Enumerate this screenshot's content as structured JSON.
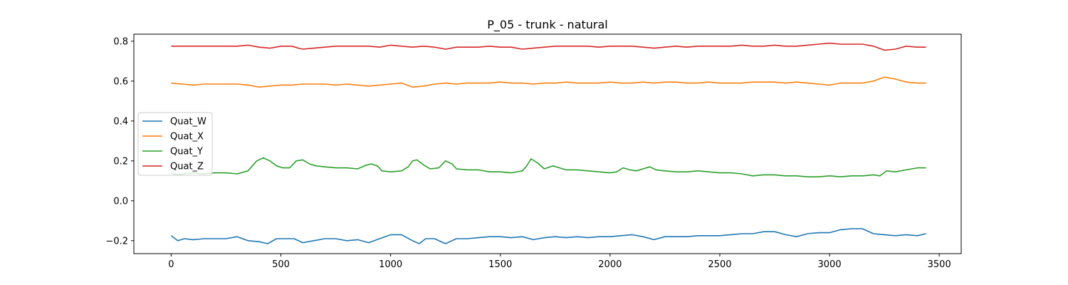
{
  "chart_data": {
    "type": "line",
    "title": "P_05 - trunk - natural",
    "xlabel": "",
    "ylabel": "",
    "xlim": [
      -170,
      3600
    ],
    "ylim": [
      -0.265,
      0.835
    ],
    "xticks": [
      0,
      500,
      1000,
      1500,
      2000,
      2500,
      3000,
      3500
    ],
    "yticks": [
      -0.2,
      0.0,
      0.2,
      0.4,
      0.6,
      0.8
    ],
    "xtick_labels": [
      "0",
      "500",
      "1000",
      "1500",
      "2000",
      "2500",
      "3000",
      "3500"
    ],
    "ytick_labels": [
      "−0.2",
      "0.0",
      "0.2",
      "0.4",
      "0.6",
      "0.8"
    ],
    "grid": false,
    "legend_position": "center-left",
    "series": [
      {
        "name": "Quat_W",
        "color": "#1f77b4",
        "x": [
          0,
          30,
          60,
          100,
          150,
          200,
          250,
          300,
          350,
          400,
          440,
          480,
          520,
          560,
          600,
          650,
          700,
          750,
          800,
          850,
          900,
          950,
          1000,
          1050,
          1100,
          1130,
          1160,
          1200,
          1250,
          1300,
          1350,
          1400,
          1450,
          1500,
          1550,
          1600,
          1650,
          1700,
          1750,
          1800,
          1850,
          1900,
          1950,
          2000,
          2050,
          2100,
          2150,
          2200,
          2250,
          2300,
          2350,
          2400,
          2450,
          2500,
          2550,
          2600,
          2650,
          2700,
          2750,
          2800,
          2850,
          2900,
          2950,
          3000,
          3050,
          3100,
          3150,
          3200,
          3250,
          3300,
          3350,
          3400,
          3440
        ],
        "y": [
          -0.175,
          -0.2,
          -0.19,
          -0.195,
          -0.19,
          -0.19,
          -0.19,
          -0.18,
          -0.2,
          -0.205,
          -0.215,
          -0.19,
          -0.19,
          -0.19,
          -0.21,
          -0.2,
          -0.19,
          -0.19,
          -0.2,
          -0.195,
          -0.21,
          -0.19,
          -0.17,
          -0.17,
          -0.2,
          -0.215,
          -0.19,
          -0.19,
          -0.215,
          -0.19,
          -0.19,
          -0.185,
          -0.18,
          -0.18,
          -0.185,
          -0.18,
          -0.195,
          -0.185,
          -0.18,
          -0.185,
          -0.18,
          -0.185,
          -0.18,
          -0.18,
          -0.175,
          -0.17,
          -0.18,
          -0.195,
          -0.18,
          -0.18,
          -0.18,
          -0.175,
          -0.175,
          -0.175,
          -0.17,
          -0.165,
          -0.165,
          -0.155,
          -0.155,
          -0.17,
          -0.18,
          -0.165,
          -0.16,
          -0.16,
          -0.145,
          -0.14,
          -0.14,
          -0.165,
          -0.17,
          -0.175,
          -0.17,
          -0.175,
          -0.165
        ]
      },
      {
        "name": "Quat_X",
        "color": "#ff7f0e",
        "x": [
          0,
          50,
          100,
          150,
          200,
          250,
          300,
          350,
          400,
          450,
          500,
          550,
          600,
          650,
          700,
          750,
          800,
          850,
          900,
          950,
          1000,
          1050,
          1100,
          1150,
          1200,
          1250,
          1300,
          1350,
          1400,
          1450,
          1500,
          1550,
          1600,
          1650,
          1700,
          1750,
          1800,
          1850,
          1900,
          1950,
          2000,
          2050,
          2100,
          2150,
          2200,
          2250,
          2300,
          2350,
          2400,
          2450,
          2500,
          2550,
          2600,
          2650,
          2700,
          2750,
          2800,
          2850,
          2900,
          2950,
          3000,
          3050,
          3100,
          3150,
          3200,
          3250,
          3300,
          3350,
          3400,
          3440
        ],
        "y": [
          0.59,
          0.585,
          0.58,
          0.585,
          0.585,
          0.585,
          0.585,
          0.58,
          0.57,
          0.575,
          0.58,
          0.58,
          0.585,
          0.585,
          0.585,
          0.58,
          0.585,
          0.58,
          0.575,
          0.58,
          0.585,
          0.59,
          0.57,
          0.575,
          0.585,
          0.59,
          0.585,
          0.59,
          0.59,
          0.59,
          0.595,
          0.59,
          0.59,
          0.585,
          0.59,
          0.59,
          0.595,
          0.59,
          0.59,
          0.59,
          0.595,
          0.59,
          0.59,
          0.595,
          0.59,
          0.595,
          0.595,
          0.59,
          0.59,
          0.595,
          0.59,
          0.59,
          0.59,
          0.595,
          0.595,
          0.595,
          0.59,
          0.595,
          0.59,
          0.585,
          0.58,
          0.59,
          0.59,
          0.59,
          0.6,
          0.62,
          0.61,
          0.595,
          0.59,
          0.59
        ]
      },
      {
        "name": "Quat_Y",
        "color": "#2ca02c",
        "x": [
          0,
          30,
          60,
          100,
          150,
          200,
          250,
          300,
          350,
          390,
          420,
          450,
          480,
          510,
          540,
          570,
          600,
          630,
          660,
          700,
          750,
          800,
          850,
          880,
          910,
          940,
          960,
          1000,
          1050,
          1080,
          1100,
          1120,
          1150,
          1180,
          1220,
          1250,
          1280,
          1300,
          1350,
          1400,
          1450,
          1500,
          1550,
          1600,
          1620,
          1640,
          1670,
          1700,
          1740,
          1770,
          1800,
          1850,
          1900,
          1950,
          2000,
          2030,
          2060,
          2090,
          2120,
          2150,
          2180,
          2210,
          2250,
          2300,
          2350,
          2400,
          2450,
          2500,
          2550,
          2600,
          2650,
          2700,
          2750,
          2800,
          2850,
          2900,
          2950,
          3000,
          3050,
          3100,
          3150,
          3200,
          3230,
          3260,
          3300,
          3350,
          3400,
          3440
        ],
        "y": [
          0.14,
          0.13,
          0.135,
          0.14,
          0.135,
          0.14,
          0.14,
          0.135,
          0.15,
          0.2,
          0.215,
          0.2,
          0.175,
          0.165,
          0.165,
          0.2,
          0.205,
          0.185,
          0.175,
          0.17,
          0.165,
          0.165,
          0.16,
          0.175,
          0.185,
          0.175,
          0.15,
          0.145,
          0.15,
          0.17,
          0.2,
          0.205,
          0.18,
          0.16,
          0.165,
          0.2,
          0.185,
          0.16,
          0.155,
          0.155,
          0.145,
          0.145,
          0.14,
          0.15,
          0.175,
          0.21,
          0.19,
          0.16,
          0.175,
          0.165,
          0.155,
          0.155,
          0.15,
          0.145,
          0.14,
          0.145,
          0.165,
          0.155,
          0.15,
          0.16,
          0.17,
          0.155,
          0.15,
          0.145,
          0.145,
          0.15,
          0.145,
          0.14,
          0.14,
          0.135,
          0.125,
          0.13,
          0.13,
          0.125,
          0.125,
          0.12,
          0.12,
          0.125,
          0.12,
          0.125,
          0.125,
          0.13,
          0.125,
          0.15,
          0.145,
          0.155,
          0.165,
          0.165
        ]
      },
      {
        "name": "Quat_Z",
        "color": "#d62728",
        "x": [
          0,
          50,
          100,
          150,
          200,
          250,
          300,
          350,
          400,
          450,
          500,
          550,
          580,
          600,
          650,
          700,
          750,
          800,
          850,
          900,
          950,
          1000,
          1050,
          1100,
          1150,
          1200,
          1250,
          1300,
          1350,
          1400,
          1450,
          1500,
          1550,
          1600,
          1650,
          1700,
          1750,
          1800,
          1850,
          1900,
          1950,
          2000,
          2050,
          2100,
          2150,
          2200,
          2250,
          2300,
          2350,
          2400,
          2450,
          2500,
          2550,
          2600,
          2650,
          2700,
          2750,
          2800,
          2850,
          2900,
          2950,
          3000,
          3050,
          3100,
          3150,
          3200,
          3250,
          3300,
          3350,
          3400,
          3440
        ],
        "y": [
          0.775,
          0.775,
          0.775,
          0.775,
          0.775,
          0.775,
          0.775,
          0.78,
          0.77,
          0.765,
          0.775,
          0.775,
          0.765,
          0.76,
          0.765,
          0.77,
          0.775,
          0.775,
          0.775,
          0.775,
          0.77,
          0.78,
          0.775,
          0.77,
          0.775,
          0.77,
          0.76,
          0.77,
          0.77,
          0.77,
          0.775,
          0.77,
          0.77,
          0.76,
          0.765,
          0.77,
          0.775,
          0.775,
          0.775,
          0.775,
          0.77,
          0.775,
          0.775,
          0.775,
          0.77,
          0.765,
          0.77,
          0.775,
          0.77,
          0.775,
          0.775,
          0.775,
          0.775,
          0.78,
          0.775,
          0.775,
          0.78,
          0.775,
          0.775,
          0.78,
          0.785,
          0.79,
          0.785,
          0.785,
          0.785,
          0.775,
          0.755,
          0.76,
          0.775,
          0.77,
          0.77
        ]
      }
    ]
  }
}
